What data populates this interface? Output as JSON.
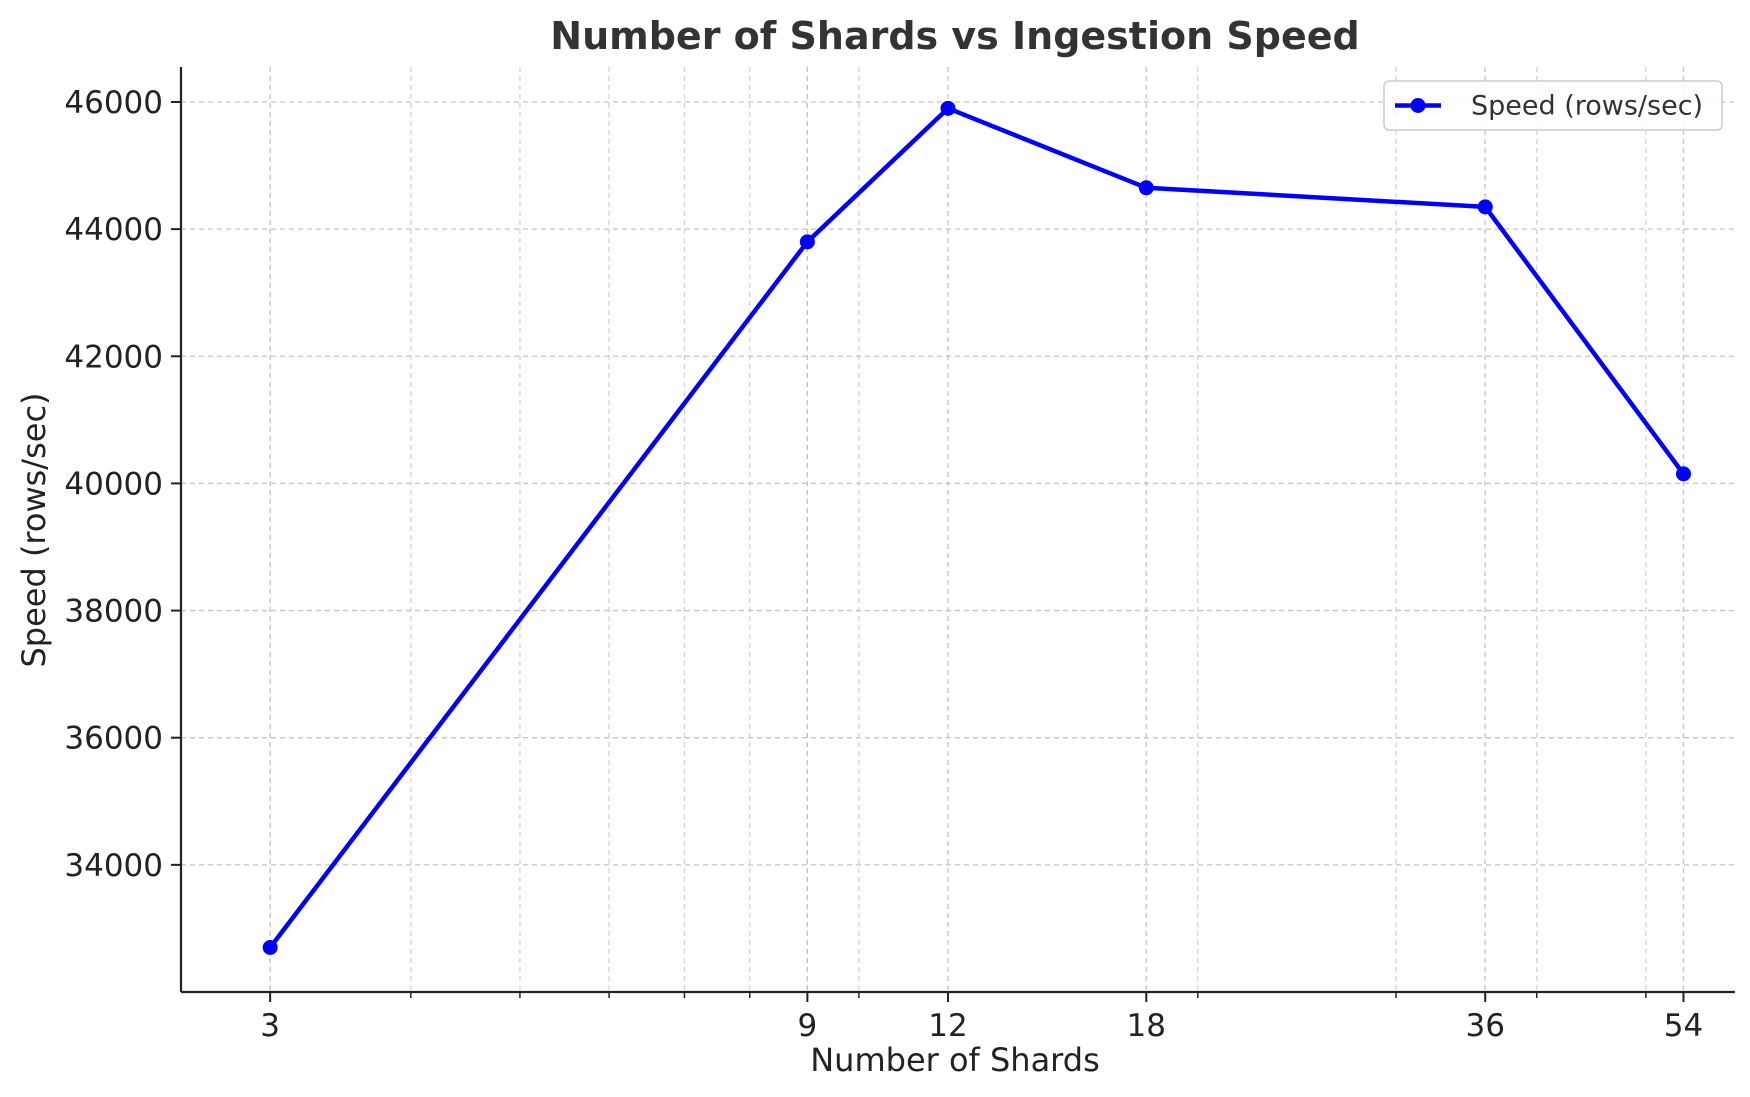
{
  "chart_data": {
    "type": "line",
    "title": "Number of Shards vs Ingestion Speed",
    "xlabel": "Number of Shards",
    "ylabel": "Speed (rows/sec)",
    "x_scale": "log",
    "xlim": [
      2.5,
      60
    ],
    "ylim": [
      32000,
      46550
    ],
    "x_ticks": [
      3,
      9,
      12,
      18,
      36,
      54
    ],
    "y_ticks": [
      34000,
      36000,
      38000,
      40000,
      42000,
      44000,
      46000
    ],
    "grid": true,
    "legend_position": "top-right",
    "series": [
      {
        "name": "Speed (rows/sec)",
        "color": "#0000ff",
        "marker": "circle",
        "x": [
          3,
          9,
          12,
          18,
          36,
          54
        ],
        "y": [
          32700,
          43800,
          45900,
          44650,
          44350,
          40150
        ]
      }
    ]
  }
}
